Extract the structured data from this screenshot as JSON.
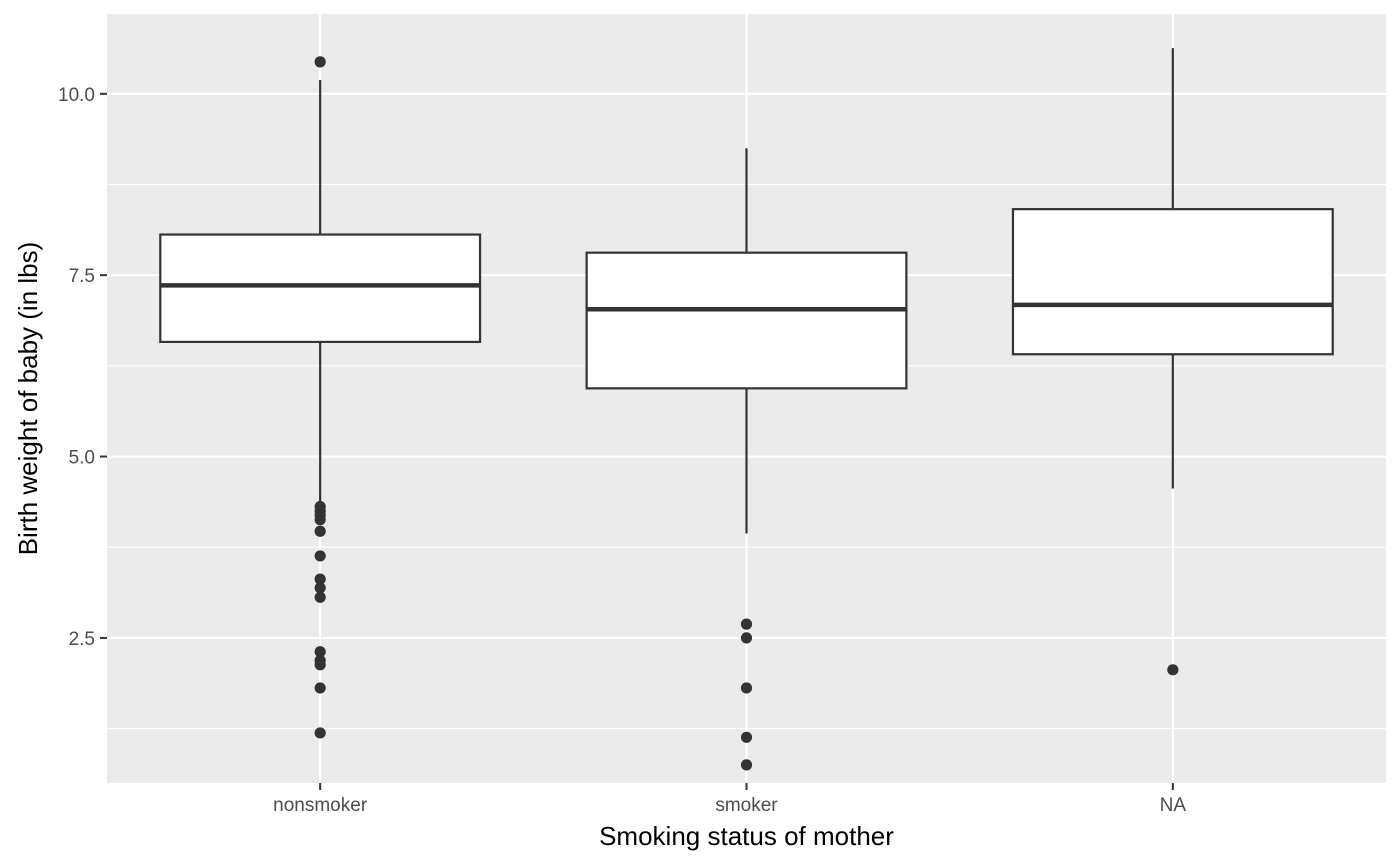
{
  "chart_data": {
    "type": "boxplot",
    "xlabel": "Smoking status of mother",
    "ylabel": "Birth weight of baby (in lbs)",
    "categories": [
      "nonsmoker",
      "smoker",
      "NA"
    ],
    "ylim": [
      0.5,
      11.1
    ],
    "yticks": [
      2.5,
      5.0,
      7.5,
      10.0
    ],
    "ytick_labels": [
      "2.5",
      "5.0",
      "7.5",
      "10.0"
    ],
    "grid": true,
    "legend": "none",
    "boxes": [
      {
        "category": "nonsmoker",
        "whisker_low": 4.38,
        "q1": 6.58,
        "median": 7.36,
        "q3": 8.06,
        "whisker_high": 10.19,
        "outliers": [
          10.44,
          4.31,
          4.25,
          4.19,
          4.13,
          3.97,
          3.63,
          3.31,
          3.19,
          3.06,
          2.31,
          2.19,
          2.13,
          1.81,
          1.19
        ]
      },
      {
        "category": "smoker",
        "whisker_low": 3.94,
        "q1": 5.94,
        "median": 7.03,
        "q3": 7.81,
        "whisker_high": 9.25,
        "outliers": [
          2.69,
          2.5,
          1.81,
          1.13,
          0.75
        ]
      },
      {
        "category": "NA",
        "whisker_low": 4.56,
        "q1": 6.41,
        "median": 7.09,
        "q3": 8.41,
        "whisker_high": 10.63,
        "outliers": [
          2.06
        ]
      }
    ],
    "colors": {
      "panel": "#ebebeb",
      "grid": "#ffffff",
      "box_fill": "#ffffff",
      "box_line": "#333333",
      "outlier": "#333333"
    }
  }
}
